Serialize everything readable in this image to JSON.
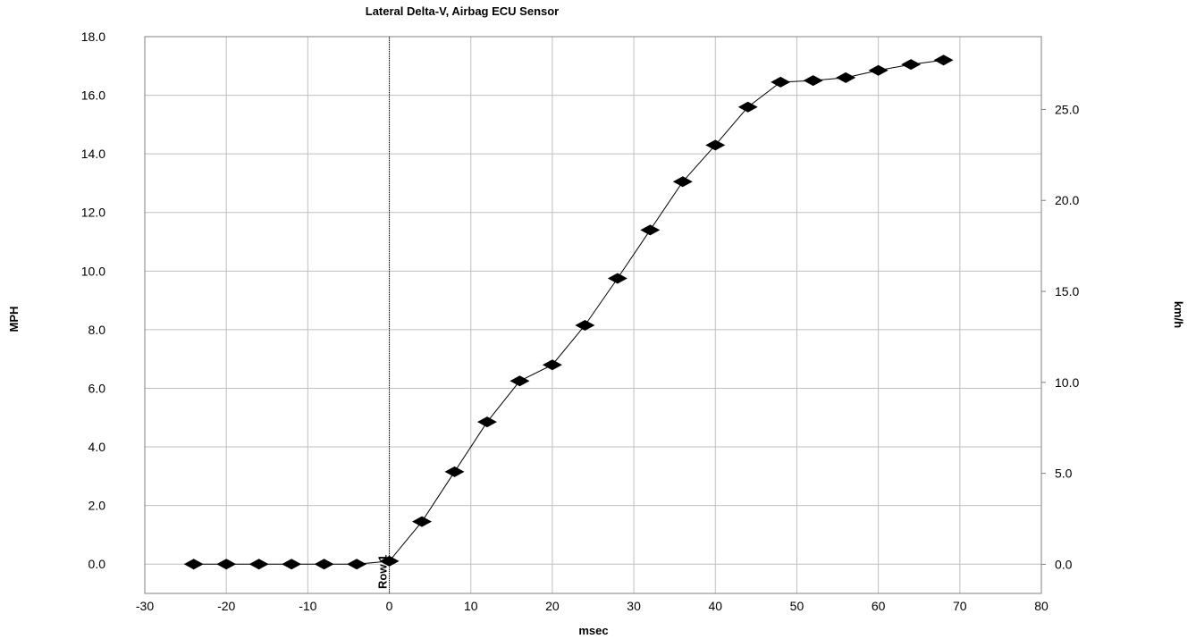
{
  "chart_data": {
    "type": "scatter",
    "title": "Lateral Delta-V, Airbag ECU Sensor",
    "xlabel": "msec",
    "ylabel": "MPH",
    "y2label": "km/h",
    "xlim": [
      -30,
      80
    ],
    "ylim": [
      -1.0,
      18.0
    ],
    "y2lim": [
      -1.6,
      29.0
    ],
    "x_ticks": [
      -30,
      -20,
      -10,
      0,
      10,
      20,
      30,
      40,
      50,
      60,
      70,
      80
    ],
    "x_tick_labels": [
      "-30",
      "-20",
      "-10",
      "0",
      "10",
      "20",
      "30",
      "40",
      "50",
      "60",
      "70",
      "80"
    ],
    "y_ticks": [
      0,
      2,
      4,
      6,
      8,
      10,
      12,
      14,
      16,
      18
    ],
    "y_tick_labels": [
      "0.0",
      "2.0",
      "4.0",
      "6.0",
      "8.0",
      "10.0",
      "12.0",
      "14.0",
      "16.0",
      "18.0"
    ],
    "y2_ticks": [
      0,
      5,
      10,
      15,
      20,
      25
    ],
    "y2_tick_labels": [
      "0.0",
      "5.0",
      "10.0",
      "15.0",
      "20.0",
      "25.0"
    ],
    "grid": true,
    "series": [
      {
        "x": [
          -24,
          -20,
          -16,
          -12,
          -8,
          -4,
          0,
          4,
          8,
          12,
          16,
          20,
          24,
          28,
          32,
          36,
          40,
          44,
          48,
          52,
          56,
          60,
          64,
          68
        ],
        "y": [
          0.0,
          0.0,
          0.0,
          0.0,
          0.0,
          0.0,
          0.1,
          1.45,
          3.15,
          4.85,
          6.25,
          6.8,
          8.15,
          9.75,
          11.4,
          13.05,
          14.3,
          15.6,
          16.45,
          16.5,
          16.6,
          16.85,
          17.05,
          17.2
        ]
      }
    ],
    "annotations": [
      {
        "x": 0,
        "label": "Row 1"
      }
    ],
    "colors": {
      "series": "#000000",
      "grid": "#bfbfbf",
      "frame": "#808080"
    }
  }
}
